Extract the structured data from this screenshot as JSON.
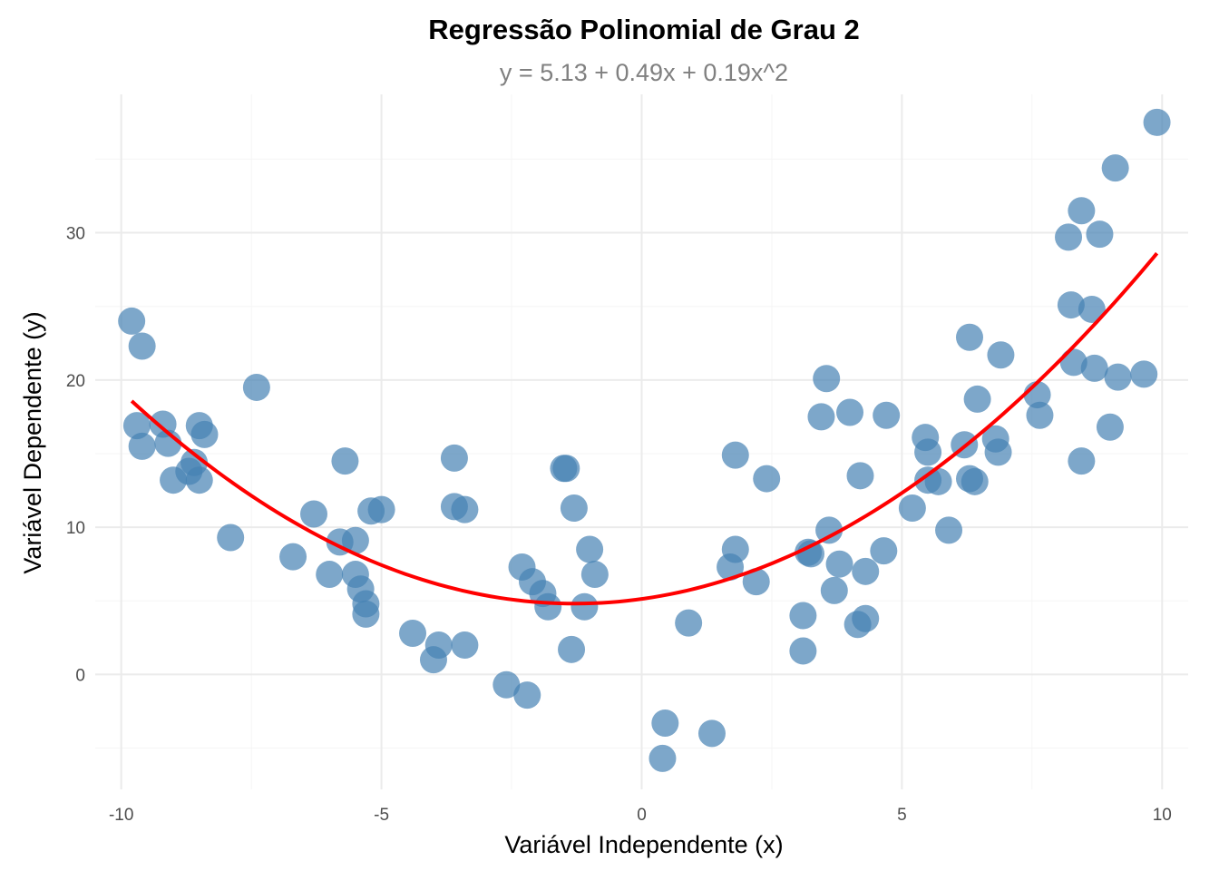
{
  "chart_data": {
    "type": "scatter",
    "title": "Regressão Polinomial de Grau 2",
    "subtitle": "y = 5.13 + 0.49x + 0.19x^2",
    "xlabel": "Variável Independente (x)",
    "ylabel": "Variável Dependente (y)",
    "xlim": [
      -10.5,
      10.5
    ],
    "ylim": [
      -7.8,
      39.4
    ],
    "x_ticks": [
      -10,
      -5,
      0,
      5,
      10
    ],
    "x_tick_labels": [
      "-10",
      "-5",
      "0",
      "5",
      "10"
    ],
    "y_ticks": [
      0,
      10,
      20,
      30
    ],
    "y_tick_labels": [
      "0",
      "10",
      "20",
      "30"
    ],
    "grid": true,
    "legend": "none",
    "point_color": "#4682B4",
    "line_color": "#FF0000",
    "fit": {
      "intercept": 5.13,
      "linear": 0.49,
      "quadratic": 0.19,
      "x_range": [
        -9.8,
        9.9
      ]
    },
    "points": [
      {
        "x": -9.8,
        "y": 24.0
      },
      {
        "x": -9.6,
        "y": 22.3
      },
      {
        "x": -9.7,
        "y": 16.9
      },
      {
        "x": -9.6,
        "y": 15.5
      },
      {
        "x": -9.2,
        "y": 17.0
      },
      {
        "x": -9.1,
        "y": 15.7
      },
      {
        "x": -9.0,
        "y": 13.2
      },
      {
        "x": -8.7,
        "y": 13.8
      },
      {
        "x": -8.6,
        "y": 14.4
      },
      {
        "x": -8.5,
        "y": 16.9
      },
      {
        "x": -8.4,
        "y": 16.3
      },
      {
        "x": -8.5,
        "y": 13.2
      },
      {
        "x": -7.9,
        "y": 9.3
      },
      {
        "x": -7.4,
        "y": 19.5
      },
      {
        "x": -6.7,
        "y": 8.0
      },
      {
        "x": -6.3,
        "y": 10.9
      },
      {
        "x": -6.0,
        "y": 6.8
      },
      {
        "x": -5.8,
        "y": 9.0
      },
      {
        "x": -5.7,
        "y": 14.5
      },
      {
        "x": -5.5,
        "y": 9.1
      },
      {
        "x": -5.5,
        "y": 6.8
      },
      {
        "x": -5.4,
        "y": 5.8
      },
      {
        "x": -5.3,
        "y": 4.8
      },
      {
        "x": -5.3,
        "y": 4.1
      },
      {
        "x": -5.2,
        "y": 11.1
      },
      {
        "x": -5.0,
        "y": 11.2
      },
      {
        "x": -4.4,
        "y": 2.8
      },
      {
        "x": -3.9,
        "y": 2.0
      },
      {
        "x": -4.0,
        "y": 1.0
      },
      {
        "x": -3.6,
        "y": 14.7
      },
      {
        "x": -3.6,
        "y": 11.4
      },
      {
        "x": -3.4,
        "y": 11.2
      },
      {
        "x": -3.4,
        "y": 2.0
      },
      {
        "x": -2.6,
        "y": -0.7
      },
      {
        "x": -2.3,
        "y": 7.3
      },
      {
        "x": -2.2,
        "y": -1.4
      },
      {
        "x": -2.1,
        "y": 6.3
      },
      {
        "x": -1.9,
        "y": 5.5
      },
      {
        "x": -1.8,
        "y": 4.6
      },
      {
        "x": -1.5,
        "y": 14.0
      },
      {
        "x": -1.45,
        "y": 14.0
      },
      {
        "x": -1.3,
        "y": 11.3
      },
      {
        "x": -1.35,
        "y": 1.7
      },
      {
        "x": -1.1,
        "y": 4.6
      },
      {
        "x": -1.0,
        "y": 8.5
      },
      {
        "x": -0.9,
        "y": 6.8
      },
      {
        "x": 0.4,
        "y": -5.7
      },
      {
        "x": 0.45,
        "y": -3.3
      },
      {
        "x": 0.9,
        "y": 3.5
      },
      {
        "x": 1.35,
        "y": -4.0
      },
      {
        "x": 1.7,
        "y": 7.3
      },
      {
        "x": 1.8,
        "y": 8.5
      },
      {
        "x": 1.8,
        "y": 14.9
      },
      {
        "x": 2.2,
        "y": 6.3
      },
      {
        "x": 2.4,
        "y": 13.3
      },
      {
        "x": 3.1,
        "y": 4.0
      },
      {
        "x": 3.1,
        "y": 1.6
      },
      {
        "x": 3.2,
        "y": 8.3
      },
      {
        "x": 3.25,
        "y": 8.2
      },
      {
        "x": 3.45,
        "y": 17.5
      },
      {
        "x": 3.55,
        "y": 20.1
      },
      {
        "x": 3.6,
        "y": 9.8
      },
      {
        "x": 3.7,
        "y": 5.7
      },
      {
        "x": 3.8,
        "y": 7.5
      },
      {
        "x": 4.0,
        "y": 17.8
      },
      {
        "x": 4.15,
        "y": 3.4
      },
      {
        "x": 4.2,
        "y": 13.5
      },
      {
        "x": 4.3,
        "y": 7.0
      },
      {
        "x": 4.3,
        "y": 3.8
      },
      {
        "x": 4.65,
        "y": 8.4
      },
      {
        "x": 4.7,
        "y": 17.6
      },
      {
        "x": 5.2,
        "y": 11.3
      },
      {
        "x": 5.45,
        "y": 16.1
      },
      {
        "x": 5.5,
        "y": 15.1
      },
      {
        "x": 5.5,
        "y": 13.2
      },
      {
        "x": 5.7,
        "y": 13.1
      },
      {
        "x": 5.9,
        "y": 9.8
      },
      {
        "x": 6.2,
        "y": 15.6
      },
      {
        "x": 6.3,
        "y": 22.9
      },
      {
        "x": 6.3,
        "y": 13.3
      },
      {
        "x": 6.4,
        "y": 13.1
      },
      {
        "x": 6.45,
        "y": 18.7
      },
      {
        "x": 6.8,
        "y": 16.0
      },
      {
        "x": 6.85,
        "y": 15.1
      },
      {
        "x": 6.9,
        "y": 21.7
      },
      {
        "x": 7.6,
        "y": 19.0
      },
      {
        "x": 7.65,
        "y": 17.6
      },
      {
        "x": 8.2,
        "y": 29.7
      },
      {
        "x": 8.25,
        "y": 25.1
      },
      {
        "x": 8.3,
        "y": 21.2
      },
      {
        "x": 8.45,
        "y": 31.5
      },
      {
        "x": 8.45,
        "y": 14.5
      },
      {
        "x": 8.65,
        "y": 24.8
      },
      {
        "x": 8.7,
        "y": 20.8
      },
      {
        "x": 8.8,
        "y": 29.9
      },
      {
        "x": 9.0,
        "y": 16.8
      },
      {
        "x": 9.1,
        "y": 34.4
      },
      {
        "x": 9.15,
        "y": 20.2
      },
      {
        "x": 9.65,
        "y": 20.4
      },
      {
        "x": 9.9,
        "y": 37.5
      }
    ]
  }
}
